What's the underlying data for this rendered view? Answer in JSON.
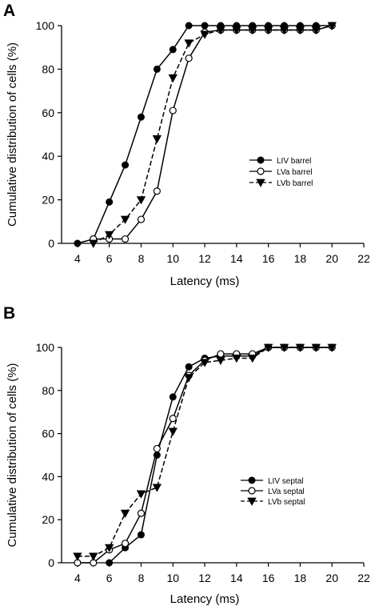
{
  "chart_data": [
    {
      "type": "line",
      "panel": "A",
      "xlabel": "Latency (ms)",
      "ylabel": "Cumulative distribution of cells (%)",
      "xlim": [
        3,
        22
      ],
      "ylim": [
        0,
        100
      ],
      "xticks": [
        4,
        6,
        8,
        10,
        12,
        14,
        16,
        18,
        20,
        22
      ],
      "yticks": [
        0,
        20,
        40,
        60,
        80,
        100
      ],
      "legend_position": "center-right",
      "series": [
        {
          "name": "LIV barrel",
          "marker": "filled-circle",
          "dash": "solid",
          "x": [
            4,
            5,
            6,
            7,
            8,
            9,
            10,
            11,
            12,
            13,
            14,
            15,
            16,
            17,
            18,
            19,
            20
          ],
          "y": [
            0,
            2,
            19,
            36,
            58,
            80,
            89,
            100,
            100,
            100,
            100,
            100,
            100,
            100,
            100,
            100,
            100
          ]
        },
        {
          "name": "LVa barrel",
          "marker": "open-circle",
          "dash": "solid",
          "x": [
            5,
            6,
            7,
            8,
            9,
            10,
            11,
            12,
            13,
            14,
            15,
            16,
            17,
            18,
            19,
            20
          ],
          "y": [
            2,
            2,
            2,
            11,
            24,
            61,
            85,
            97,
            98,
            98,
            98,
            98,
            98,
            98,
            98,
            100
          ]
        },
        {
          "name": "LVb barrel",
          "marker": "filled-triangle-down",
          "dash": "dashed",
          "x": [
            5,
            6,
            7,
            8,
            9,
            10,
            11,
            12,
            13,
            14,
            15,
            16,
            17,
            18,
            19,
            20
          ],
          "y": [
            0,
            4,
            11,
            20,
            48,
            76,
            92,
            96,
            98,
            98,
            98,
            98,
            98,
            98,
            98,
            100
          ]
        }
      ]
    },
    {
      "type": "line",
      "panel": "B",
      "xlabel": "Latency (ms)",
      "ylabel": "Cumulative distribution of cells (%)",
      "xlim": [
        3,
        22
      ],
      "ylim": [
        0,
        100
      ],
      "xticks": [
        4,
        6,
        8,
        10,
        12,
        14,
        16,
        18,
        20,
        22
      ],
      "yticks": [
        0,
        20,
        40,
        60,
        80,
        100
      ],
      "legend_position": "center-right",
      "series": [
        {
          "name": "LIV septal",
          "marker": "filled-circle",
          "dash": "solid",
          "x": [
            6,
            7,
            8,
            9,
            10,
            11,
            12,
            13,
            14,
            15,
            16,
            17,
            18,
            19,
            20
          ],
          "y": [
            0,
            7,
            13,
            50,
            77,
            91,
            95,
            96,
            96,
            96,
            100,
            100,
            100,
            100,
            100
          ]
        },
        {
          "name": "LVa septal",
          "marker": "open-circle",
          "dash": "solid",
          "x": [
            4,
            5,
            6,
            7,
            8,
            9,
            10,
            11,
            12,
            13,
            14,
            15,
            16,
            17,
            18,
            19,
            20
          ],
          "y": [
            0,
            0,
            6,
            9,
            23,
            53,
            67,
            87,
            94,
            97,
            97,
            97,
            100,
            100,
            100,
            100,
            100
          ]
        },
        {
          "name": "LVb septal",
          "marker": "filled-triangle-down",
          "dash": "dashed",
          "x": [
            4,
            5,
            6,
            7,
            8,
            9,
            10,
            11,
            12,
            13,
            14,
            15,
            16,
            17,
            18,
            19,
            20
          ],
          "y": [
            3,
            3,
            7,
            23,
            32,
            35,
            61,
            86,
            93,
            94,
            95,
            95,
            100,
            100,
            100,
            100,
            100
          ]
        }
      ]
    }
  ]
}
